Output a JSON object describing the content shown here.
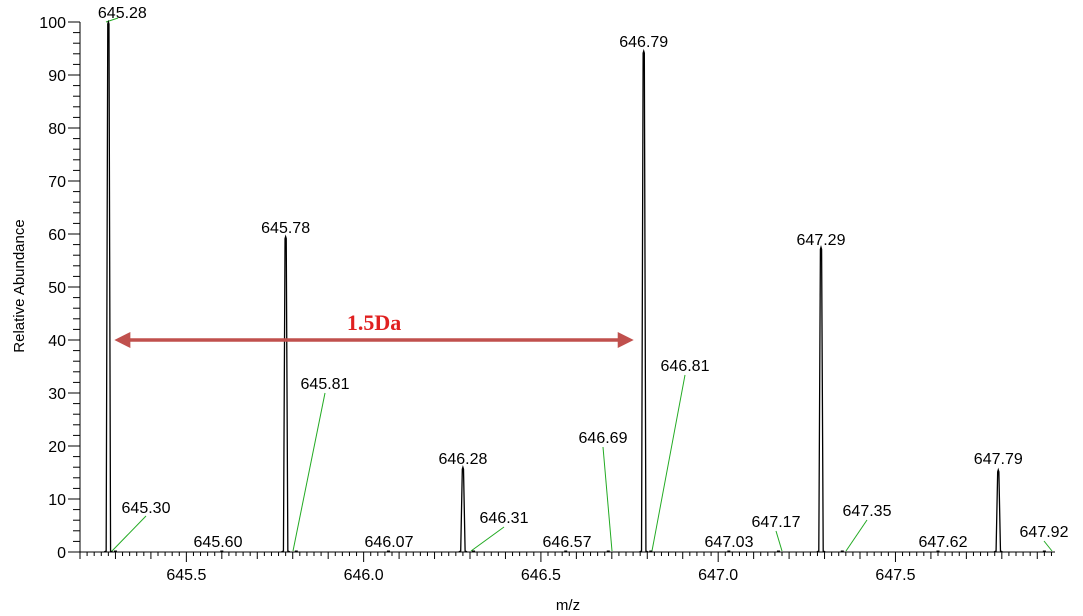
{
  "chart_data": {
    "type": "line",
    "title": "",
    "xlabel": "m/z",
    "ylabel": "Relative Abundance",
    "xlim": [
      645.2,
      647.95
    ],
    "ylim": [
      0,
      100
    ],
    "x_ticks": [
      "645.5",
      "646.0",
      "646.5",
      "647.0",
      "647.5"
    ],
    "x_tick_values": [
      645.5,
      646.0,
      646.5,
      647.0,
      647.5
    ],
    "y_ticks": [
      "0",
      "10",
      "20",
      "30",
      "40",
      "50",
      "60",
      "70",
      "80",
      "90",
      "100"
    ],
    "y_tick_values": [
      0,
      10,
      20,
      30,
      40,
      50,
      60,
      70,
      80,
      90,
      100
    ],
    "grid": false,
    "line_color": "#000000",
    "leader_color": "#22aa22",
    "series": [
      {
        "peaks": [
          {
            "mz": 645.28,
            "intensity": 100,
            "label": "645.28",
            "type": "major"
          },
          {
            "mz": 645.78,
            "intensity": 59.5,
            "label": "645.78",
            "type": "major"
          },
          {
            "mz": 646.28,
            "intensity": 16,
            "label": "646.28",
            "type": "major"
          },
          {
            "mz": 646.79,
            "intensity": 94.5,
            "label": "646.79",
            "type": "major"
          },
          {
            "mz": 647.29,
            "intensity": 57.5,
            "label": "647.29",
            "type": "major"
          },
          {
            "mz": 647.79,
            "intensity": 15.5,
            "label": "647.79",
            "type": "major"
          },
          {
            "mz": 645.3,
            "intensity": 0,
            "label": "645.30",
            "type": "minor"
          },
          {
            "mz": 645.6,
            "intensity": 0,
            "label": "645.60",
            "type": "minor"
          },
          {
            "mz": 645.81,
            "intensity": 0,
            "label": "645.81",
            "type": "minor"
          },
          {
            "mz": 646.07,
            "intensity": 0,
            "label": "646.07",
            "type": "minor"
          },
          {
            "mz": 646.31,
            "intensity": 0,
            "label": "646.31",
            "type": "minor"
          },
          {
            "mz": 646.57,
            "intensity": 0,
            "label": "646.57",
            "type": "minor"
          },
          {
            "mz": 646.69,
            "intensity": 0,
            "label": "646.69",
            "type": "minor"
          },
          {
            "mz": 646.81,
            "intensity": 0,
            "label": "646.81",
            "type": "minor"
          },
          {
            "mz": 647.03,
            "intensity": 0,
            "label": "647.03",
            "type": "minor"
          },
          {
            "mz": 647.17,
            "intensity": 0,
            "label": "647.17",
            "type": "minor"
          },
          {
            "mz": 647.35,
            "intensity": 0,
            "label": "647.35",
            "type": "minor"
          },
          {
            "mz": 647.62,
            "intensity": 0,
            "label": "647.62",
            "type": "minor"
          },
          {
            "mz": 647.92,
            "intensity": 0,
            "label": "647.92",
            "type": "minor"
          }
        ]
      }
    ],
    "annotations": [
      {
        "type": "double-arrow",
        "text": "1.5Da",
        "x_start": 645.28,
        "x_end": 646.79,
        "y": 40,
        "color": "#c0504d",
        "text_color": "#e02020"
      }
    ]
  }
}
